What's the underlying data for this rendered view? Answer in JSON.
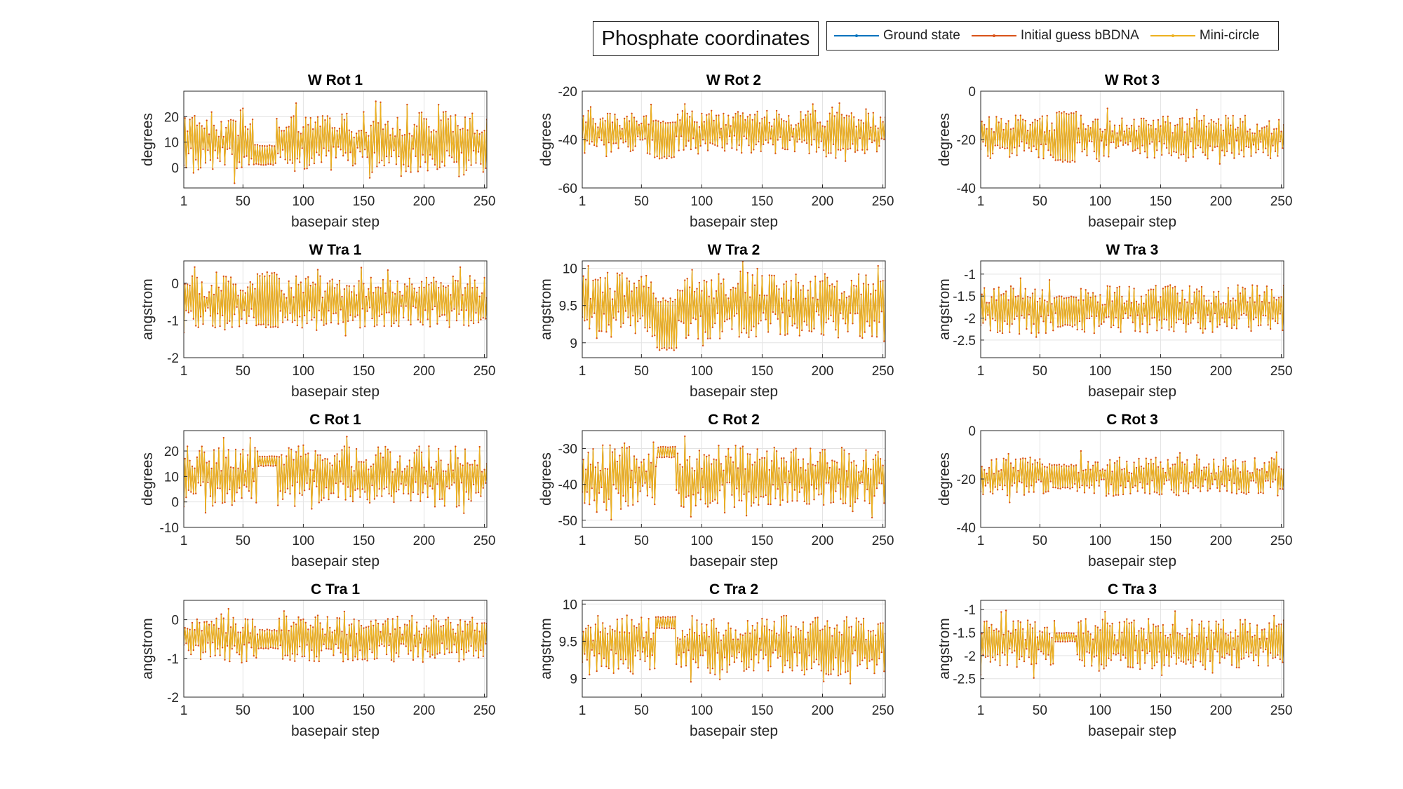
{
  "figure": {
    "title": "Phosphate coordinates",
    "legend": [
      {
        "label": "Ground state",
        "color": "#0072BD"
      },
      {
        "label": "Initial guess bBDNA",
        "color": "#D95319"
      },
      {
        "label": "Mini-circle",
        "color": "#EDB120"
      }
    ]
  },
  "chart_data": [
    {
      "type": "line",
      "title": "W Rot 1",
      "xlabel": "basepair step",
      "ylabel": "degrees",
      "xlim": [
        1,
        252
      ],
      "ylim": [
        -8,
        30
      ],
      "xticks": [
        1,
        50,
        100,
        150,
        200,
        250
      ],
      "yticks": [
        0,
        10,
        20
      ],
      "grid": true,
      "series": [
        {
          "name": "Ground state",
          "values": []
        },
        {
          "name": "Initial guess bBDNA",
          "values": []
        },
        {
          "name": "Mini-circle",
          "values": []
        }
      ],
      "summary": {
        "mean": 10,
        "amplitude": 12,
        "band": [
          60,
          76
        ],
        "band_center": 5,
        "band_amplitude": 4
      }
    },
    {
      "type": "line",
      "title": "W Rot 2",
      "xlabel": "basepair step",
      "ylabel": "degrees",
      "xlim": [
        1,
        252
      ],
      "ylim": [
        -60,
        -20
      ],
      "xticks": [
        1,
        50,
        100,
        150,
        200,
        250
      ],
      "yticks": [
        -60,
        -40,
        -20
      ],
      "grid": true,
      "series": [
        {
          "name": "Ground state",
          "values": []
        },
        {
          "name": "Initial guess bBDNA",
          "values": []
        },
        {
          "name": "Mini-circle",
          "values": []
        }
      ],
      "summary": {
        "mean": -37,
        "amplitude": 9,
        "band": [
          60,
          78
        ],
        "band_center": -40,
        "band_amplitude": 8
      }
    },
    {
      "type": "line",
      "title": "W Rot 3",
      "xlabel": "basepair step",
      "ylabel": "degrees",
      "xlim": [
        1,
        252
      ],
      "ylim": [
        -40,
        0
      ],
      "xticks": [
        1,
        50,
        100,
        150,
        200,
        250
      ],
      "yticks": [
        -40,
        -20,
        0
      ],
      "grid": true,
      "series": [
        {
          "name": "Ground state",
          "values": []
        },
        {
          "name": "Initial guess bBDNA",
          "values": []
        },
        {
          "name": "Mini-circle",
          "values": []
        }
      ],
      "summary": {
        "mean": -19,
        "amplitude": 9,
        "band": [
          63,
          80
        ],
        "band_center": -19,
        "band_amplitude": 11
      }
    },
    {
      "type": "line",
      "title": "W Tra 1",
      "xlabel": "basepair step",
      "ylabel": "angstrom",
      "xlim": [
        1,
        252
      ],
      "ylim": [
        -2,
        0.6
      ],
      "xticks": [
        1,
        50,
        100,
        150,
        200,
        250
      ],
      "yticks": [
        -2,
        -1,
        0
      ],
      "grid": true,
      "series": [
        {
          "name": "Ground state",
          "values": []
        },
        {
          "name": "Initial guess bBDNA",
          "values": []
        },
        {
          "name": "Mini-circle",
          "values": []
        }
      ],
      "summary": {
        "mean": -0.5,
        "amplitude": 0.7,
        "band": [
          62,
          79
        ],
        "band_center": -0.45,
        "band_amplitude": 0.75
      }
    },
    {
      "type": "line",
      "title": "W Tra 2",
      "xlabel": "basepair step",
      "ylabel": "angstrom",
      "xlim": [
        1,
        252
      ],
      "ylim": [
        8.8,
        10.1
      ],
      "xticks": [
        1,
        50,
        100,
        150,
        200,
        250
      ],
      "yticks": [
        9,
        9.5,
        10
      ],
      "grid": true,
      "series": [
        {
          "name": "Ground state",
          "values": []
        },
        {
          "name": "Initial guess bBDNA",
          "values": []
        },
        {
          "name": "Mini-circle",
          "values": []
        }
      ],
      "summary": {
        "mean": 9.5,
        "amplitude": 0.45,
        "band": [
          62,
          79
        ],
        "band_center": 9.25,
        "band_amplitude": 0.35
      }
    },
    {
      "type": "line",
      "title": "W Tra 3",
      "xlabel": "basepair step",
      "ylabel": "angstrom",
      "xlim": [
        1,
        252
      ],
      "ylim": [
        -2.9,
        -0.7
      ],
      "xticks": [
        1,
        50,
        100,
        150,
        200,
        250
      ],
      "yticks": [
        -2.5,
        -2,
        -1.5,
        -1
      ],
      "grid": true,
      "series": [
        {
          "name": "Ground state",
          "values": []
        },
        {
          "name": "Initial guess bBDNA",
          "values": []
        },
        {
          "name": "Mini-circle",
          "values": []
        }
      ],
      "summary": {
        "mean": -1.8,
        "amplitude": 0.55,
        "band": [
          64,
          80
        ],
        "band_center": -1.85,
        "band_amplitude": 0.35
      }
    },
    {
      "type": "line",
      "title": "C Rot 1",
      "xlabel": "basepair step",
      "ylabel": "degrees",
      "xlim": [
        1,
        252
      ],
      "ylim": [
        -10,
        28
      ],
      "xticks": [
        1,
        50,
        100,
        150,
        200,
        250
      ],
      "yticks": [
        -10,
        0,
        10,
        20
      ],
      "grid": true,
      "series": [
        {
          "name": "Ground state",
          "values": []
        },
        {
          "name": "Initial guess bBDNA",
          "values": []
        },
        {
          "name": "Mini-circle",
          "values": []
        }
      ],
      "summary": {
        "mean": 10,
        "amplitude": 12,
        "band": [
          63,
          78
        ],
        "band_center": 16,
        "band_amplitude": 2
      }
    },
    {
      "type": "line",
      "title": "C Rot 2",
      "xlabel": "basepair step",
      "ylabel": "degrees",
      "xlim": [
        1,
        252
      ],
      "ylim": [
        -52,
        -25
      ],
      "xticks": [
        1,
        50,
        100,
        150,
        200,
        250
      ],
      "yticks": [
        -50,
        -40,
        -30
      ],
      "grid": true,
      "series": [
        {
          "name": "Ground state",
          "values": []
        },
        {
          "name": "Initial guess bBDNA",
          "values": []
        },
        {
          "name": "Mini-circle",
          "values": []
        }
      ],
      "summary": {
        "mean": -38,
        "amplitude": 9,
        "band": [
          63,
          78
        ],
        "band_center": -31,
        "band_amplitude": 1.5
      }
    },
    {
      "type": "line",
      "title": "C Rot 3",
      "xlabel": "basepair step",
      "ylabel": "degrees",
      "xlim": [
        1,
        252
      ],
      "ylim": [
        -40,
        0
      ],
      "xticks": [
        1,
        50,
        100,
        150,
        200,
        250
      ],
      "yticks": [
        -40,
        -20,
        0
      ],
      "grid": true,
      "series": [
        {
          "name": "Ground state",
          "values": []
        },
        {
          "name": "Initial guess bBDNA",
          "values": []
        },
        {
          "name": "Mini-circle",
          "values": []
        }
      ],
      "summary": {
        "mean": -19,
        "amplitude": 8,
        "band": [
          60,
          78
        ],
        "band_center": -19,
        "band_amplitude": 5
      }
    },
    {
      "type": "line",
      "title": "C Tra 1",
      "xlabel": "basepair step",
      "ylabel": "angstrom",
      "xlim": [
        1,
        252
      ],
      "ylim": [
        -2,
        0.5
      ],
      "xticks": [
        1,
        50,
        100,
        150,
        200,
        250
      ],
      "yticks": [
        -2,
        -1,
        0
      ],
      "grid": true,
      "series": [
        {
          "name": "Ground state",
          "values": []
        },
        {
          "name": "Initial guess bBDNA",
          "values": []
        },
        {
          "name": "Mini-circle",
          "values": []
        }
      ],
      "summary": {
        "mean": -0.5,
        "amplitude": 0.6,
        "band": [
          63,
          79
        ],
        "band_center": -0.5,
        "band_amplitude": 0.25
      }
    },
    {
      "type": "line",
      "title": "C Tra 2",
      "xlabel": "basepair step",
      "ylabel": "angstrom",
      "xlim": [
        1,
        252
      ],
      "ylim": [
        8.75,
        10.05
      ],
      "xticks": [
        1,
        50,
        100,
        150,
        200,
        250
      ],
      "yticks": [
        9,
        9.5,
        10
      ],
      "grid": true,
      "series": [
        {
          "name": "Ground state",
          "values": []
        },
        {
          "name": "Initial guess bBDNA",
          "values": []
        },
        {
          "name": "Mini-circle",
          "values": []
        }
      ],
      "summary": {
        "mean": 9.45,
        "amplitude": 0.4,
        "band": [
          62,
          78
        ],
        "band_center": 9.75,
        "band_amplitude": 0.08
      }
    },
    {
      "type": "line",
      "title": "C Tra 3",
      "xlabel": "basepair step",
      "ylabel": "angstrom",
      "xlim": [
        1,
        252
      ],
      "ylim": [
        -2.9,
        -0.8
      ],
      "xticks": [
        1,
        50,
        100,
        150,
        200,
        250
      ],
      "yticks": [
        -2.5,
        -2,
        -1.5,
        -1
      ],
      "grid": true,
      "series": [
        {
          "name": "Ground state",
          "values": []
        },
        {
          "name": "Initial guess bBDNA",
          "values": []
        },
        {
          "name": "Mini-circle",
          "values": []
        }
      ],
      "summary": {
        "mean": -1.75,
        "amplitude": 0.55,
        "band": [
          63,
          79
        ],
        "band_center": -1.6,
        "band_amplitude": 0.1
      }
    }
  ]
}
